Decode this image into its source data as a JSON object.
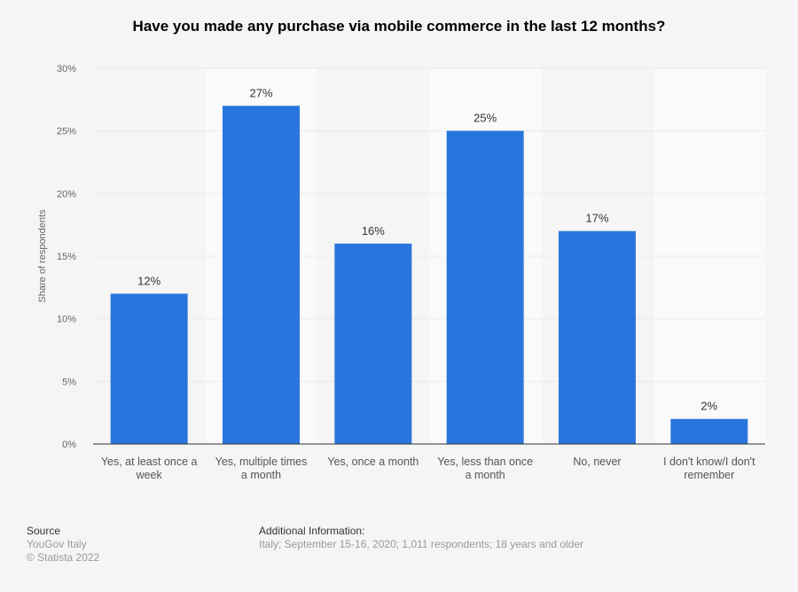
{
  "chart_data": {
    "type": "bar",
    "title": "Have you made any purchase via mobile commerce in the last 12 months?",
    "xlabel": "",
    "ylabel": "Share of respondents",
    "ylim": [
      0,
      30
    ],
    "yticks": [
      0,
      5,
      10,
      15,
      20,
      25,
      30
    ],
    "ytick_labels": [
      "0%",
      "5%",
      "10%",
      "15%",
      "20%",
      "25%",
      "30%"
    ],
    "grid": true,
    "categories": [
      [
        "Yes, at least once a",
        "week"
      ],
      [
        "Yes, multiple times",
        "a month"
      ],
      [
        "Yes, once a month"
      ],
      [
        "Yes, less than once",
        "a month"
      ],
      [
        "No, never"
      ],
      [
        "I don't know/I don't",
        "remember"
      ]
    ],
    "values": [
      12,
      27,
      16,
      25,
      17,
      2
    ],
    "data_labels": [
      "12%",
      "27%",
      "16%",
      "25%",
      "17%",
      "2%"
    ],
    "bar_color": "#2876dd"
  },
  "footer": {
    "source_heading": "Source",
    "source_lines": [
      "YouGov Italy",
      "© Statista 2022"
    ],
    "info_heading": "Additional Information:",
    "info_text": "Italy; September 15-16, 2020; 1,011 respondents; 18 years and older"
  }
}
